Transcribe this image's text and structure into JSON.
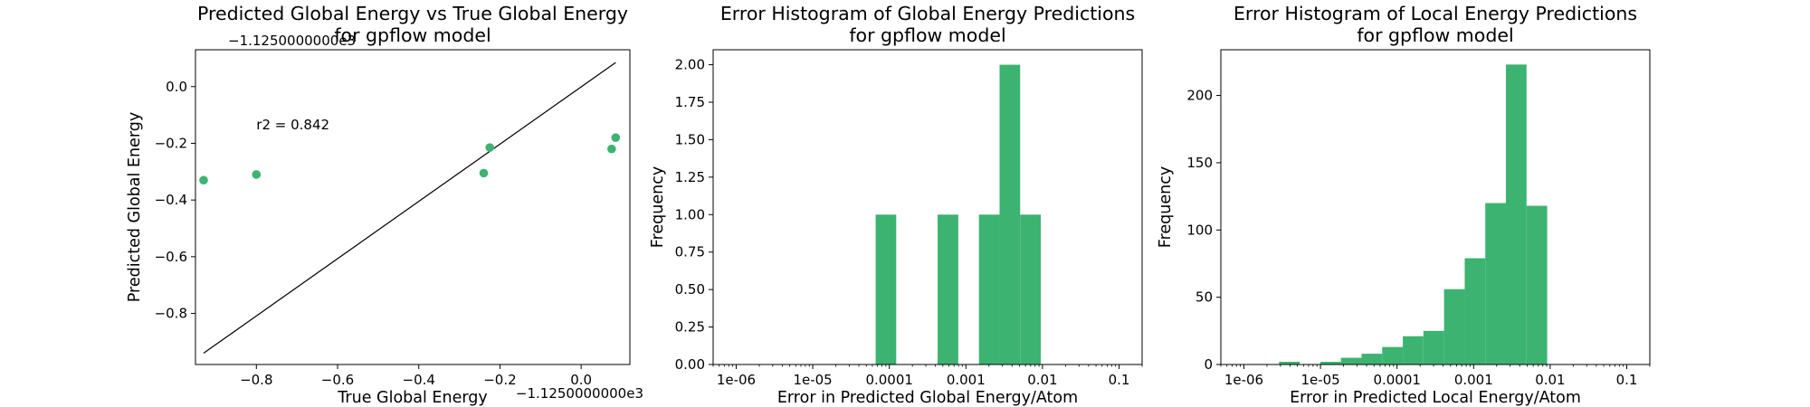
{
  "chart_data": [
    {
      "type": "scatter",
      "title_line1": "Predicted Global Energy vs True Global Energy",
      "title_line2": "for gpflow model",
      "xlabel": "True Global Energy",
      "ylabel": "Predicted Global Energy",
      "x_offset_label": "−1.1250000000e3",
      "y_offset_label": "−1.1250000000e3",
      "xlim": [
        -0.95,
        0.12
      ],
      "ylim": [
        -0.98,
        0.13
      ],
      "xticks": [
        -0.8,
        -0.6,
        -0.4,
        -0.2,
        0.0
      ],
      "xtick_labels": [
        "−0.8",
        "−0.6",
        "−0.4",
        "−0.2",
        "0.0"
      ],
      "yticks": [
        0.0,
        -0.2,
        -0.4,
        -0.6,
        -0.8
      ],
      "ytick_labels": [
        "0.0",
        "−0.2",
        "−0.4",
        "−0.6",
        "−0.8"
      ],
      "points": [
        {
          "x": -0.93,
          "y": -0.33
        },
        {
          "x": -0.8,
          "y": -0.31
        },
        {
          "x": -0.24,
          "y": -0.305
        },
        {
          "x": -0.225,
          "y": -0.215
        },
        {
          "x": 0.075,
          "y": -0.22
        },
        {
          "x": 0.085,
          "y": -0.18
        }
      ],
      "fit_line": {
        "x1": -0.93,
        "y1": -0.94,
        "x2": 0.085,
        "y2": 0.085
      },
      "annotation": "r2 = 0.842",
      "annotation_pos": {
        "x": -0.8,
        "y": -0.15
      },
      "color": "#3cb371",
      "line_color": "#000000"
    },
    {
      "type": "histogram",
      "title_line1": "Error Histogram of Global Energy Predictions",
      "title_line2": "for gpflow model",
      "xlabel": "Error in Predicted Global Energy/Atom",
      "ylabel": "Frequency",
      "x_scale": "log",
      "xlim": [
        5e-07,
        0.2
      ],
      "ylim": [
        0,
        2.1
      ],
      "xticks": [
        1e-06,
        1e-05,
        0.0001,
        0.001,
        0.01,
        0.1
      ],
      "xtick_labels": [
        "1e-06",
        "1e-05",
        "0.0001",
        "0.001",
        "0.01",
        "0.1"
      ],
      "yticks": [
        0,
        0.25,
        0.5,
        0.75,
        1.0,
        1.25,
        1.5,
        1.75,
        2.0
      ],
      "ytick_labels": [
        "0.00",
        "0.25",
        "0.50",
        "0.75",
        "1.00",
        "1.25",
        "1.50",
        "1.75",
        "2.00"
      ],
      "bins": [
        {
          "x0": 6.62e-05,
          "x1": 0.000123,
          "count": 1
        },
        {
          "x0": 0.000427,
          "x1": 0.000795,
          "count": 1
        },
        {
          "x0": 0.00148,
          "x1": 0.00275,
          "count": 1
        },
        {
          "x0": 0.00275,
          "x1": 0.00511,
          "count": 2
        },
        {
          "x0": 0.00511,
          "x1": 0.0095,
          "count": 1
        }
      ],
      "color": "#3cb371"
    },
    {
      "type": "histogram",
      "title_line1": "Error Histogram of Local Energy Predictions",
      "title_line2": "for gpflow model",
      "xlabel": "Error in Predicted Local Energy/Atom",
      "ylabel": "Frequency",
      "x_scale": "log",
      "xlim": [
        5e-07,
        0.2
      ],
      "ylim": [
        0,
        234
      ],
      "xticks": [
        1e-06,
        1e-05,
        0.0001,
        0.001,
        0.01,
        0.1
      ],
      "xtick_labels": [
        "1e-06",
        "1e-05",
        "0.0001",
        "0.001",
        "0.01",
        "0.1"
      ],
      "yticks": [
        0,
        50,
        100,
        150,
        200
      ],
      "ytick_labels": [
        "0",
        "50",
        "100",
        "150",
        "200"
      ],
      "bins": [
        {
          "x0": 2.88e-06,
          "x1": 5.36e-06,
          "count": 2
        },
        {
          "x0": 5.36e-06,
          "x1": 9.95e-06,
          "count": 0
        },
        {
          "x0": 9.95e-06,
          "x1": 1.85e-05,
          "count": 2
        },
        {
          "x0": 1.85e-05,
          "x1": 3.44e-05,
          "count": 5
        },
        {
          "x0": 3.44e-05,
          "x1": 6.4e-05,
          "count": 8
        },
        {
          "x0": 6.4e-05,
          "x1": 0.000119,
          "count": 13
        },
        {
          "x0": 0.000119,
          "x1": 0.000221,
          "count": 21
        },
        {
          "x0": 0.000221,
          "x1": 0.000411,
          "count": 25
        },
        {
          "x0": 0.000411,
          "x1": 0.000765,
          "count": 56
        },
        {
          "x0": 0.000765,
          "x1": 0.00142,
          "count": 79
        },
        {
          "x0": 0.00142,
          "x1": 0.00264,
          "count": 120
        },
        {
          "x0": 0.00264,
          "x1": 0.00491,
          "count": 223
        },
        {
          "x0": 0.00491,
          "x1": 0.00913,
          "count": 118
        }
      ],
      "color": "#3cb371"
    }
  ]
}
